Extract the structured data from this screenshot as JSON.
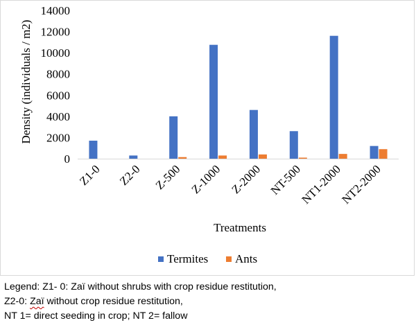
{
  "chart_data": {
    "type": "bar",
    "categories": [
      "Z1-0",
      "Z2-0",
      "Z-500",
      "Z-1000",
      "Z-2000",
      "NT-500",
      "NT1-2000",
      "NT2-2000"
    ],
    "series": [
      {
        "name": "Termites",
        "color": "#4472c4",
        "values": [
          1700,
          300,
          4000,
          10750,
          4600,
          2600,
          11600,
          1200
        ]
      },
      {
        "name": "Ants",
        "color": "#ed7d31",
        "values": [
          0,
          0,
          150,
          300,
          400,
          100,
          450,
          900
        ]
      }
    ],
    "title": "",
    "xlabel": "Treatments",
    "ylabel": "Density (individuals / m2)",
    "ylim": [
      0,
      14000
    ],
    "yticks": [
      "0",
      "2000",
      "4000",
      "6000",
      "8000",
      "10000",
      "12000",
      "14000"
    ],
    "grid": false,
    "legend_position": "bottom"
  },
  "note": {
    "line1": "Legend: Z1- 0: Zaï without shrubs with crop residue restitution,",
    "line2_start": "Z2-0: ",
    "line2_flagged": "Zaï",
    "line2_end": " without crop residue restitution,",
    "line3": "NT 1= direct seeding in crop; NT 2= fallow"
  }
}
